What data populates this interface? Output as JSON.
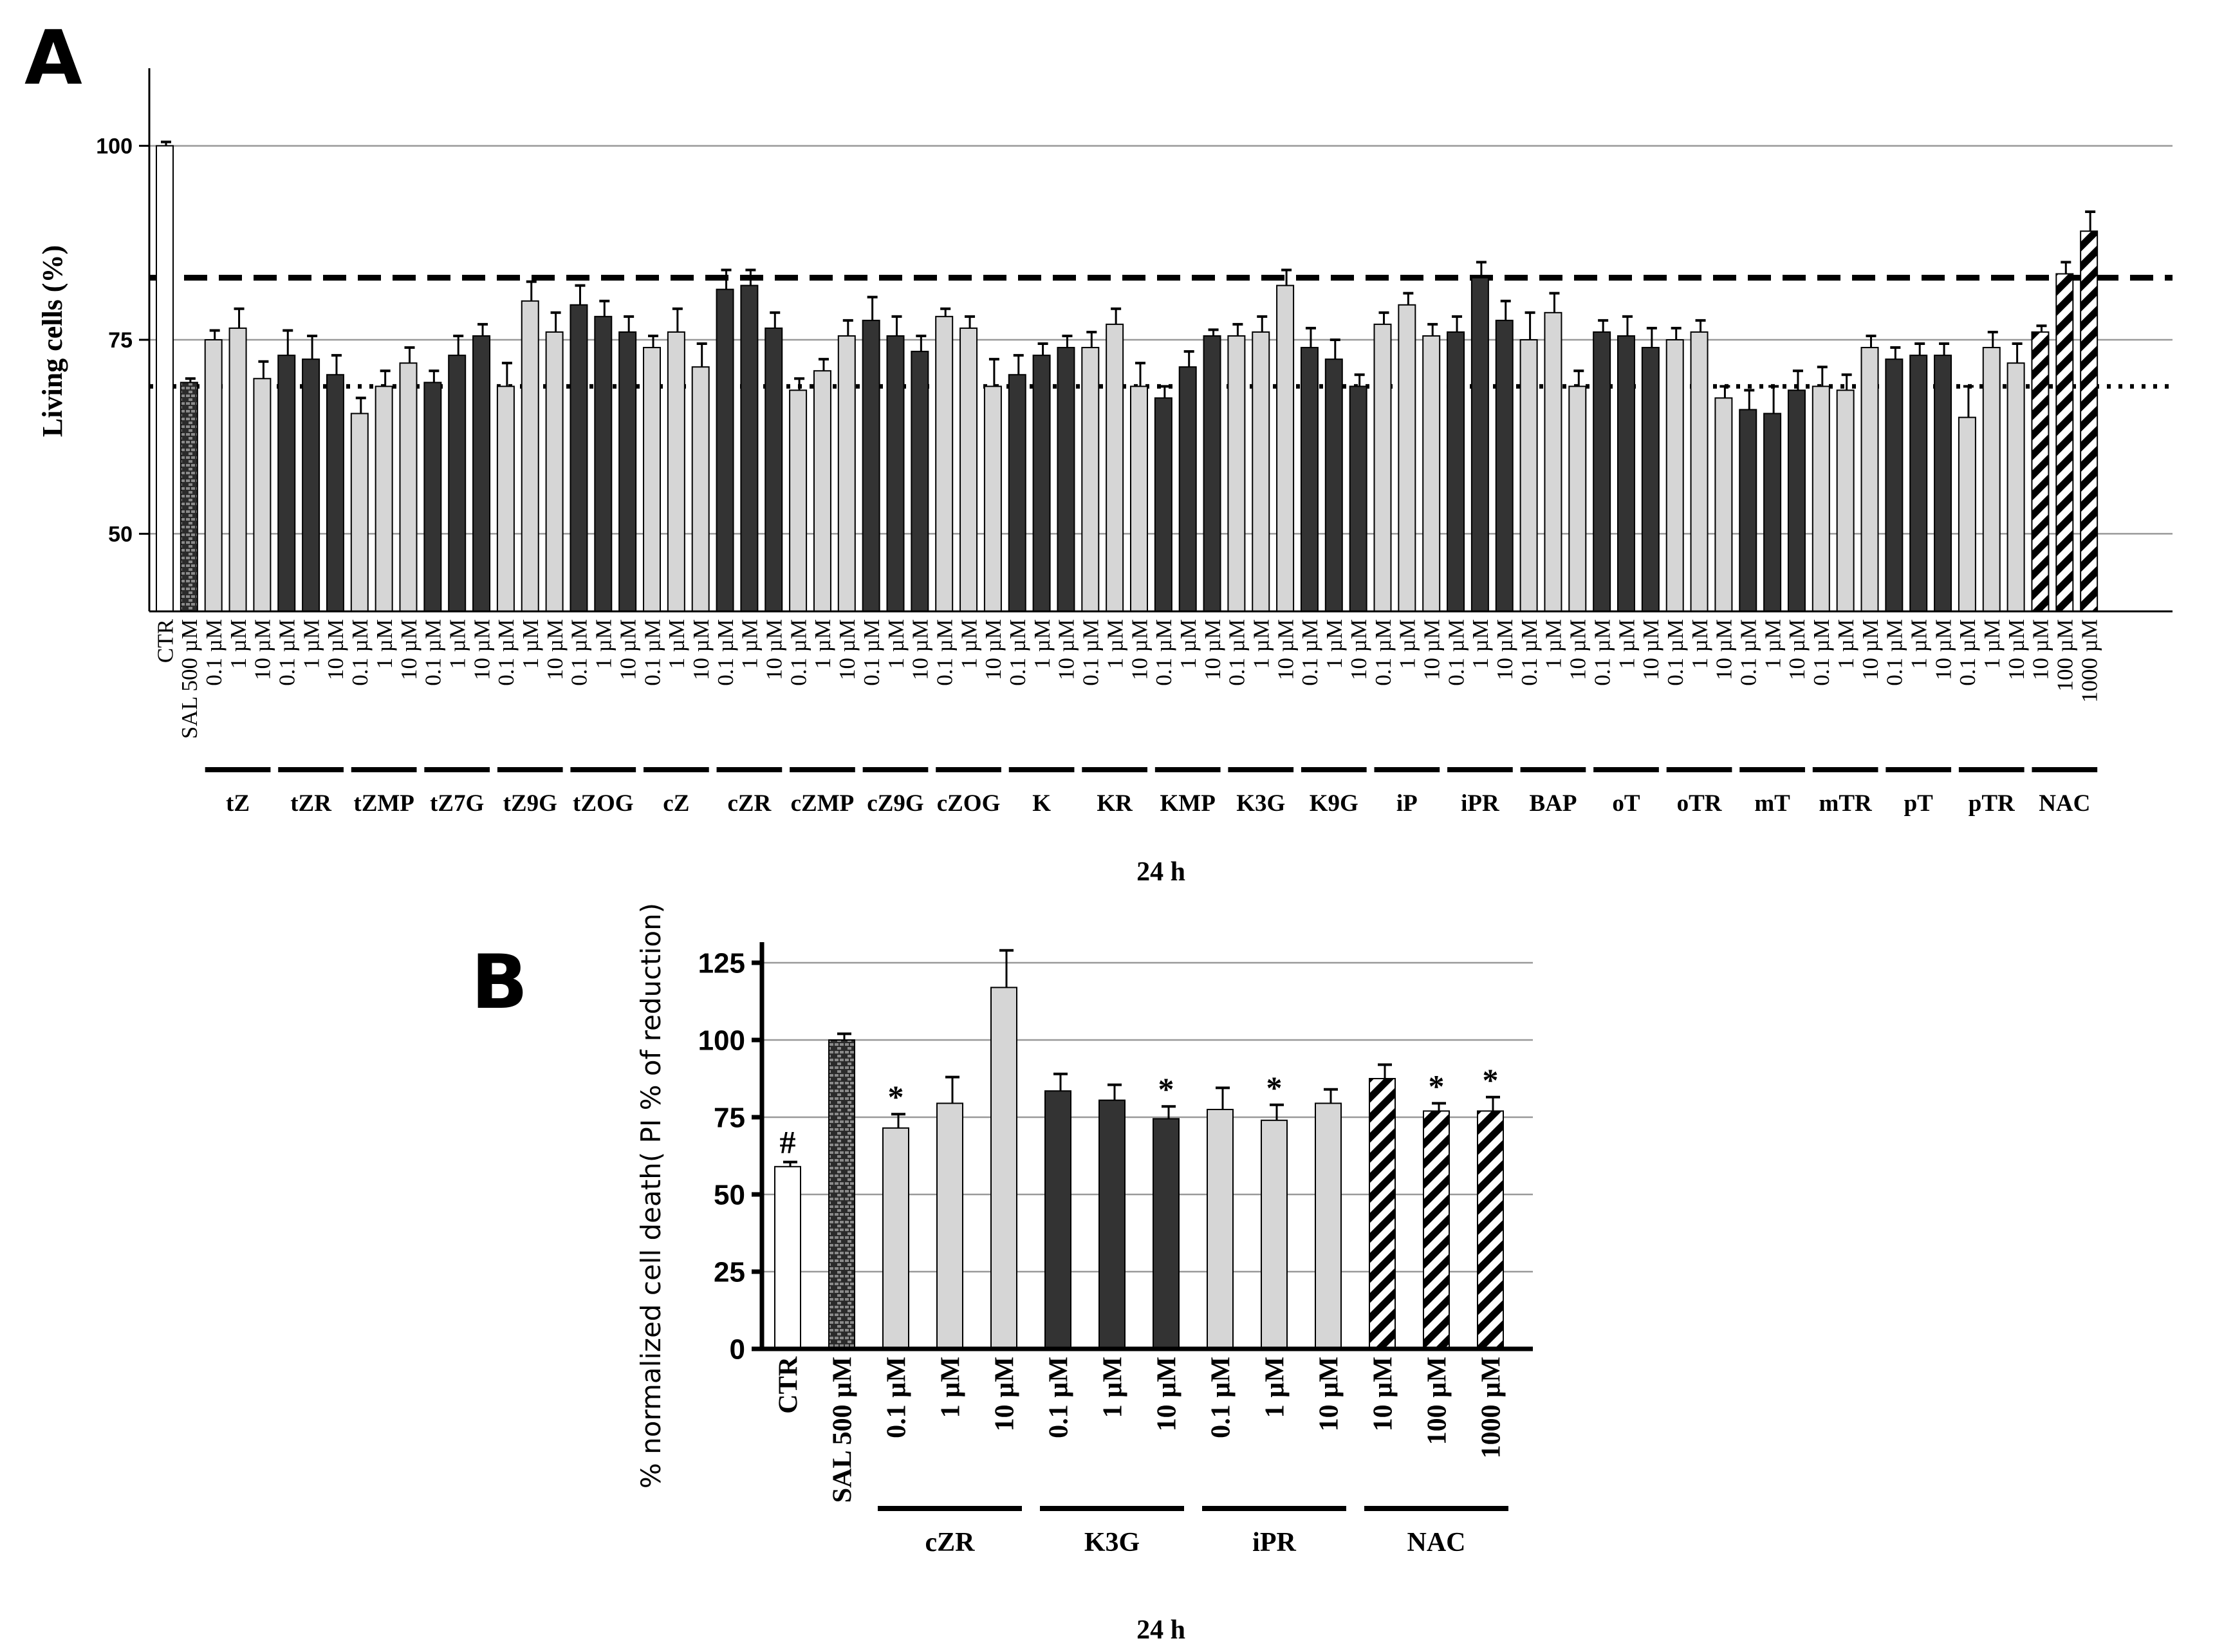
{
  "colors": {
    "white_bar": "#ffffff",
    "light_bar": "#d6d6d6",
    "dark_bar": "#333333",
    "grid": "#999999",
    "ink": "#000000"
  },
  "chart_data": [
    {
      "panel": "A",
      "type": "bar",
      "title": "",
      "ylabel": "Living cells (%)",
      "xlabel": "24 h",
      "ylim": [
        40,
        110
      ],
      "yticks": [
        50,
        75,
        100
      ],
      "grid": true,
      "reference_lines": [
        {
          "style": "dashed",
          "y": 83
        },
        {
          "style": "dotted",
          "y": 69
        }
      ],
      "bars": [
        {
          "label": "CTR",
          "value": 100,
          "err": 0.5,
          "style": "white"
        },
        {
          "label": "SAL 500 µM",
          "value": 69.5,
          "err": 0.5,
          "style": "brick"
        },
        {
          "label": "0.1 µM",
          "group": "tZ",
          "value": 75,
          "err": 1.2,
          "style": "light"
        },
        {
          "label": "1 µM",
          "group": "tZ",
          "value": 76.5,
          "err": 2.5,
          "style": "light"
        },
        {
          "label": "10 µM",
          "group": "tZ",
          "value": 70,
          "err": 2.2,
          "style": "light"
        },
        {
          "label": "0.1 µM",
          "group": "tZR",
          "value": 73,
          "err": 3.2,
          "style": "dark"
        },
        {
          "label": "1 µM",
          "group": "tZR",
          "value": 72.5,
          "err": 3,
          "style": "dark"
        },
        {
          "label": "10 µM",
          "group": "tZR",
          "value": 70.5,
          "err": 2.5,
          "style": "dark"
        },
        {
          "label": "0.1 µM",
          "group": "tZMP",
          "value": 65.5,
          "err": 2,
          "style": "light"
        },
        {
          "label": "1 µM",
          "group": "tZMP",
          "value": 69,
          "err": 2,
          "style": "light"
        },
        {
          "label": "10 µM",
          "group": "tZMP",
          "value": 72,
          "err": 2,
          "style": "light"
        },
        {
          "label": "0.1 µM",
          "group": "tZ7G",
          "value": 69.5,
          "err": 1.5,
          "style": "dark"
        },
        {
          "label": "1 µM",
          "group": "tZ7G",
          "value": 73,
          "err": 2.5,
          "style": "dark"
        },
        {
          "label": "10 µM",
          "group": "tZ7G",
          "value": 75.5,
          "err": 1.5,
          "style": "dark"
        },
        {
          "label": "0.1 µM",
          "group": "tZ9G",
          "value": 69,
          "err": 3,
          "style": "light"
        },
        {
          "label": "1 µM",
          "group": "tZ9G",
          "value": 80,
          "err": 2.5,
          "style": "light"
        },
        {
          "label": "10 µM",
          "group": "tZ9G",
          "value": 76,
          "err": 2.5,
          "style": "light"
        },
        {
          "label": "0.1 µM",
          "group": "tZOG",
          "value": 79.5,
          "err": 2.5,
          "style": "dark"
        },
        {
          "label": "1 µM",
          "group": "tZOG",
          "value": 78,
          "err": 2,
          "style": "dark"
        },
        {
          "label": "10 µM",
          "group": "tZOG",
          "value": 76,
          "err": 2,
          "style": "dark"
        },
        {
          "label": "0.1 µM",
          "group": "cZ",
          "value": 74,
          "err": 1.5,
          "style": "light"
        },
        {
          "label": "1 µM",
          "group": "cZ",
          "value": 76,
          "err": 3,
          "style": "light"
        },
        {
          "label": "10 µM",
          "group": "cZ",
          "value": 71.5,
          "err": 3,
          "style": "light"
        },
        {
          "label": "0.1 µM",
          "group": "cZR",
          "value": 81.5,
          "err": 2.5,
          "style": "dark"
        },
        {
          "label": "1 µM",
          "group": "cZR",
          "value": 82,
          "err": 2,
          "style": "dark"
        },
        {
          "label": "10 µM",
          "group": "cZR",
          "value": 76.5,
          "err": 2,
          "style": "dark"
        },
        {
          "label": "0.1 µM",
          "group": "cZMP",
          "value": 68.5,
          "err": 1.5,
          "style": "light"
        },
        {
          "label": "1 µM",
          "group": "cZMP",
          "value": 71,
          "err": 1.5,
          "style": "light"
        },
        {
          "label": "10 µM",
          "group": "cZMP",
          "value": 75.5,
          "err": 2,
          "style": "light"
        },
        {
          "label": "0.1 µM",
          "group": "cZ9G",
          "value": 77.5,
          "err": 3,
          "style": "dark"
        },
        {
          "label": "1 µM",
          "group": "cZ9G",
          "value": 75.5,
          "err": 2.5,
          "style": "dark"
        },
        {
          "label": "10 µM",
          "group": "cZ9G",
          "value": 73.5,
          "err": 2,
          "style": "dark"
        },
        {
          "label": "0.1 µM",
          "group": "cZOG",
          "value": 78,
          "err": 1,
          "style": "light"
        },
        {
          "label": "1 µM",
          "group": "cZOG",
          "value": 76.5,
          "err": 1.5,
          "style": "light"
        },
        {
          "label": "10 µM",
          "group": "cZOG",
          "value": 69,
          "err": 3.5,
          "style": "light"
        },
        {
          "label": "0.1 µM",
          "group": "K",
          "value": 70.5,
          "err": 2.5,
          "style": "dark"
        },
        {
          "label": "1 µM",
          "group": "K",
          "value": 73,
          "err": 1.5,
          "style": "dark"
        },
        {
          "label": "10 µM",
          "group": "K",
          "value": 74,
          "err": 1.5,
          "style": "dark"
        },
        {
          "label": "0.1 µM",
          "group": "KR",
          "value": 74,
          "err": 2,
          "style": "light"
        },
        {
          "label": "1 µM",
          "group": "KR",
          "value": 77,
          "err": 2,
          "style": "light"
        },
        {
          "label": "10 µM",
          "group": "KR",
          "value": 69,
          "err": 3,
          "style": "light"
        },
        {
          "label": "0.1 µM",
          "group": "KMP",
          "value": 67.5,
          "err": 1.5,
          "style": "dark"
        },
        {
          "label": "1 µM",
          "group": "KMP",
          "value": 71.5,
          "err": 2,
          "style": "dark"
        },
        {
          "label": "10 µM",
          "group": "KMP",
          "value": 75.5,
          "err": 0.8,
          "style": "dark"
        },
        {
          "label": "0.1 µM",
          "group": "K3G",
          "value": 75.5,
          "err": 1.5,
          "style": "light"
        },
        {
          "label": "1 µM",
          "group": "K3G",
          "value": 76,
          "err": 2,
          "style": "light"
        },
        {
          "label": "10 µM",
          "group": "K3G",
          "value": 82,
          "err": 2,
          "style": "light"
        },
        {
          "label": "0.1 µM",
          "group": "K9G",
          "value": 74,
          "err": 2.5,
          "style": "dark"
        },
        {
          "label": "1 µM",
          "group": "K9G",
          "value": 72.5,
          "err": 2.5,
          "style": "dark"
        },
        {
          "label": "10 µM",
          "group": "K9G",
          "value": 69,
          "err": 1.5,
          "style": "dark"
        },
        {
          "label": "0.1 µM",
          "group": "iP",
          "value": 77,
          "err": 1.5,
          "style": "light"
        },
        {
          "label": "1 µM",
          "group": "iP",
          "value": 79.5,
          "err": 1.5,
          "style": "light"
        },
        {
          "label": "10 µM",
          "group": "iP",
          "value": 75.5,
          "err": 1.5,
          "style": "light"
        },
        {
          "label": "0.1 µM",
          "group": "iPR",
          "value": 76,
          "err": 2,
          "style": "dark"
        },
        {
          "label": "1 µM",
          "group": "iPR",
          "value": 83,
          "err": 2,
          "style": "dark"
        },
        {
          "label": "10 µM",
          "group": "iPR",
          "value": 77.5,
          "err": 2.5,
          "style": "dark"
        },
        {
          "label": "0.1 µM",
          "group": "BAP",
          "value": 75,
          "err": 3.5,
          "style": "light"
        },
        {
          "label": "1 µM",
          "group": "BAP",
          "value": 78.5,
          "err": 2.5,
          "style": "light"
        },
        {
          "label": "10 µM",
          "group": "BAP",
          "value": 69,
          "err": 2,
          "style": "light"
        },
        {
          "label": "0.1 µM",
          "group": "oT",
          "value": 76,
          "err": 1.5,
          "style": "dark"
        },
        {
          "label": "1 µM",
          "group": "oT",
          "value": 75.5,
          "err": 2.5,
          "style": "dark"
        },
        {
          "label": "10 µM",
          "group": "oT",
          "value": 74,
          "err": 2.5,
          "style": "dark"
        },
        {
          "label": "0.1 µM",
          "group": "oTR",
          "value": 75,
          "err": 1.5,
          "style": "light"
        },
        {
          "label": "1 µM",
          "group": "oTR",
          "value": 76,
          "err": 1.5,
          "style": "light"
        },
        {
          "label": "10 µM",
          "group": "oTR",
          "value": 67.5,
          "err": 1.5,
          "style": "light"
        },
        {
          "label": "0.1 µM",
          "group": "mT",
          "value": 66,
          "err": 2.5,
          "style": "dark"
        },
        {
          "label": "1 µM",
          "group": "mT",
          "value": 65.5,
          "err": 3.5,
          "style": "dark"
        },
        {
          "label": "10 µM",
          "group": "mT",
          "value": 68.5,
          "err": 2.5,
          "style": "dark"
        },
        {
          "label": "0.1 µM",
          "group": "mTR",
          "value": 69,
          "err": 2.5,
          "style": "light"
        },
        {
          "label": "1 µM",
          "group": "mTR",
          "value": 68.5,
          "err": 2,
          "style": "light"
        },
        {
          "label": "10 µM",
          "group": "mTR",
          "value": 74,
          "err": 1.5,
          "style": "light"
        },
        {
          "label": "0.1 µM",
          "group": "pT",
          "value": 72.5,
          "err": 1.5,
          "style": "dark"
        },
        {
          "label": "1 µM",
          "group": "pT",
          "value": 73,
          "err": 1.5,
          "style": "dark"
        },
        {
          "label": "10 µM",
          "group": "pT",
          "value": 73,
          "err": 1.5,
          "style": "dark"
        },
        {
          "label": "0.1 µM",
          "group": "pTR",
          "value": 65,
          "err": 4,
          "style": "light"
        },
        {
          "label": "1 µM",
          "group": "pTR",
          "value": 74,
          "err": 2,
          "style": "light"
        },
        {
          "label": "10 µM",
          "group": "pTR",
          "value": 72,
          "err": 2.5,
          "style": "light"
        },
        {
          "label": "10 µM",
          "group": "NAC",
          "value": 76,
          "err": 0.8,
          "style": "hatch"
        },
        {
          "label": "100 µM",
          "group": "NAC",
          "value": 83.5,
          "err": 1.5,
          "style": "hatch"
        },
        {
          "label": "1000 µM",
          "group": "NAC",
          "value": 89,
          "err": 2.5,
          "style": "hatch"
        }
      ]
    },
    {
      "panel": "B",
      "type": "bar",
      "title": "",
      "ylabel": "% normalized cell death( PI % of reduction)",
      "xlabel": "24 h",
      "ylim": [
        0,
        130
      ],
      "yticks": [
        0,
        25,
        50,
        75,
        100,
        125
      ],
      "grid": true,
      "bars": [
        {
          "label": "CTR",
          "value": 59,
          "err": 1.5,
          "style": "white",
          "mark": "#"
        },
        {
          "label": "SAL 500 µM",
          "value": 100,
          "err": 2,
          "style": "brick",
          "mark": ""
        },
        {
          "label": "0.1 µM",
          "group": "cZR",
          "value": 71.5,
          "err": 4.5,
          "style": "light",
          "mark": "*"
        },
        {
          "label": "1 µM",
          "group": "cZR",
          "value": 79.5,
          "err": 8.5,
          "style": "light",
          "mark": ""
        },
        {
          "label": "10 µM",
          "group": "cZR",
          "value": 117,
          "err": 12,
          "style": "light",
          "mark": ""
        },
        {
          "label": "0.1 µM",
          "group": "K3G",
          "value": 83.5,
          "err": 5.5,
          "style": "dark",
          "mark": ""
        },
        {
          "label": "1 µM",
          "group": "K3G",
          "value": 80.5,
          "err": 5,
          "style": "dark",
          "mark": ""
        },
        {
          "label": "10 µM",
          "group": "K3G",
          "value": 74.5,
          "err": 4,
          "style": "dark",
          "mark": "*"
        },
        {
          "label": "0.1 µM",
          "group": "iPR",
          "value": 77.5,
          "err": 7,
          "style": "light",
          "mark": ""
        },
        {
          "label": "1 µM",
          "group": "iPR",
          "value": 74,
          "err": 5,
          "style": "light",
          "mark": "*"
        },
        {
          "label": "10 µM",
          "group": "iPR",
          "value": 79.5,
          "err": 4.5,
          "style": "light",
          "mark": ""
        },
        {
          "label": "10 µM",
          "group": "NAC",
          "value": 87.5,
          "err": 4.5,
          "style": "hatch",
          "mark": ""
        },
        {
          "label": "100 µM",
          "group": "NAC",
          "value": 77,
          "err": 2.5,
          "style": "hatch",
          "mark": "*"
        },
        {
          "label": "1000 µM",
          "group": "NAC",
          "value": 77,
          "err": 4.5,
          "style": "hatch",
          "mark": "*"
        }
      ]
    }
  ]
}
